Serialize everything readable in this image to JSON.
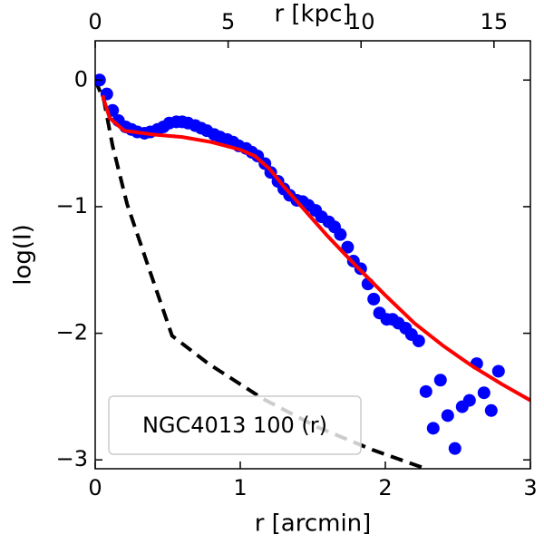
{
  "chart_data": {
    "type": "scatter",
    "xlabel": "r [arcmin]",
    "x2label": "r [kpc]",
    "ylabel": "log(I)",
    "annotation": "NGC4013 100 (r)",
    "xlim": [
      0,
      3
    ],
    "xticks": [
      0,
      1,
      2,
      3
    ],
    "x2lim": [
      0,
      16.37
    ],
    "x2ticks": [
      0,
      5,
      10,
      15
    ],
    "ylim": [
      -3.07,
      0.31
    ],
    "yticks": [
      0,
      {
        "value": -1,
        "label": "−1"
      },
      {
        "value": -2,
        "label": "−2"
      },
      {
        "value": -3,
        "label": "−3"
      }
    ],
    "series": [
      {
        "type": "scatter",
        "color": "#0000ff",
        "x": [
          0.03,
          0.08,
          0.12,
          0.16,
          0.21,
          0.25,
          0.29,
          0.34,
          0.38,
          0.43,
          0.47,
          0.51,
          0.56,
          0.6,
          0.64,
          0.69,
          0.73,
          0.77,
          0.82,
          0.86,
          0.91,
          0.95,
          0.99,
          1.04,
          1.08,
          1.12,
          1.17,
          1.21,
          1.26,
          1.3,
          1.34,
          1.39,
          1.43,
          1.47,
          1.52,
          1.56,
          1.61,
          1.65,
          1.69,
          1.74,
          1.78,
          1.83,
          1.88,
          1.92,
          1.96,
          2.01,
          2.05,
          2.09,
          2.14,
          2.18,
          2.23,
          2.28,
          2.33,
          2.38,
          2.43,
          2.48,
          2.53,
          2.58,
          2.63,
          2.68,
          2.73,
          2.78
        ],
        "values": [
          0,
          -0.11,
          -0.24,
          -0.32,
          -0.37,
          -0.39,
          -0.41,
          -0.42,
          -0.41,
          -0.39,
          -0.37,
          -0.34,
          -0.33,
          -0.33,
          -0.34,
          -0.36,
          -0.38,
          -0.4,
          -0.43,
          -0.45,
          -0.47,
          -0.49,
          -0.52,
          -0.54,
          -0.57,
          -0.6,
          -0.66,
          -0.73,
          -0.8,
          -0.86,
          -0.91,
          -0.95,
          -0.96,
          -0.99,
          -1.03,
          -1.08,
          -1.12,
          -1.16,
          -1.22,
          -1.32,
          -1.43,
          -1.49,
          -1.61,
          -1.73,
          -1.84,
          -1.89,
          -1.89,
          -1.92,
          -1.96,
          -2.01,
          -2.06,
          -2.46,
          -2.75,
          -2.37,
          -2.65,
          -2.91,
          -2.58,
          -2.53,
          -2.24,
          -2.47,
          -2.61,
          -2.3
        ]
      },
      {
        "type": "line",
        "color": "#ff0000",
        "x": [
          0.05,
          0.1,
          0.2,
          0.4,
          0.6,
          0.8,
          1.0,
          1.1,
          1.2,
          1.3,
          1.4,
          1.5,
          1.6,
          1.8,
          2.0,
          2.2,
          2.4,
          2.6,
          2.8,
          3.0
        ],
        "values": [
          -0.12,
          -0.3,
          -0.4,
          -0.43,
          -0.45,
          -0.49,
          -0.55,
          -0.6,
          -0.7,
          -0.84,
          -0.97,
          -1.1,
          -1.23,
          -1.47,
          -1.7,
          -1.92,
          -2.1,
          -2.26,
          -2.4,
          -2.53
        ]
      },
      {
        "type": "line",
        "color": "#000000",
        "dashed": true,
        "x": [
          0,
          0.06,
          0.12,
          0.22,
          0.38,
          0.53,
          0.78,
          1.16,
          1.53,
          1.91,
          2.28
        ],
        "values": [
          0,
          -0.16,
          -0.52,
          -0.98,
          -1.52,
          -2.02,
          -2.24,
          -2.52,
          -2.74,
          -2.92,
          -3.07
        ]
      }
    ]
  }
}
